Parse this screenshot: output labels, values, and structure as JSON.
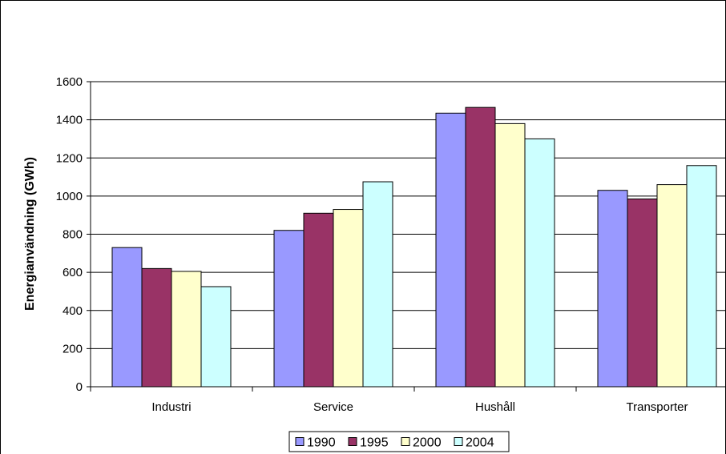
{
  "chart_data": {
    "type": "bar",
    "title": "",
    "xlabel": "",
    "ylabel": "Energianvändning (GWh)",
    "ylim": [
      0,
      1600
    ],
    "yticks": [
      0,
      200,
      400,
      600,
      800,
      1000,
      1200,
      1400,
      1600
    ],
    "grid": true,
    "legend_position": "bottom",
    "categories": [
      "Industri",
      "Service",
      "Hushåll",
      "Transporter"
    ],
    "series": [
      {
        "name": "1990",
        "color": "#9999ff",
        "values": [
          730,
          820,
          1435,
          1030
        ]
      },
      {
        "name": "1995",
        "color": "#993366",
        "values": [
          620,
          910,
          1465,
          985
        ]
      },
      {
        "name": "2000",
        "color": "#ffffcc",
        "values": [
          605,
          930,
          1380,
          1060
        ]
      },
      {
        "name": "2004",
        "color": "#ccffff",
        "values": [
          525,
          1075,
          1300,
          1160
        ]
      }
    ]
  }
}
